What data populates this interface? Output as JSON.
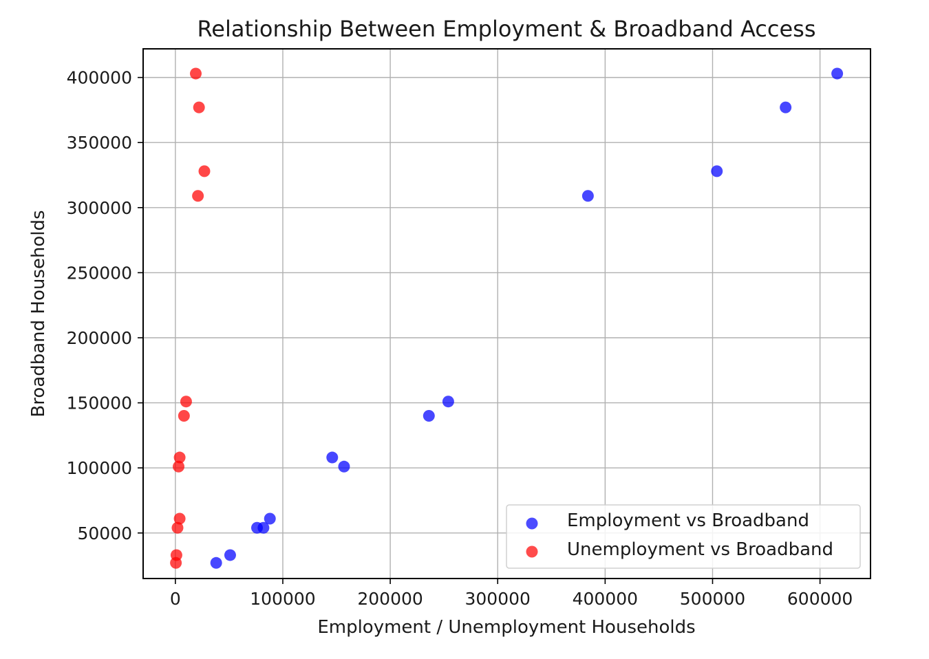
{
  "chart_data": {
    "type": "scatter",
    "title": "Relationship Between Employment & Broadband Access",
    "xlabel": "Employment / Unemployment Households",
    "ylabel": "Broadband Households",
    "xlim": [
      -30000,
      647000
    ],
    "ylim": [
      15000,
      422000
    ],
    "xticks": [
      0,
      100000,
      200000,
      300000,
      400000,
      500000,
      600000
    ],
    "yticks": [
      50000,
      100000,
      150000,
      200000,
      250000,
      300000,
      350000,
      400000
    ],
    "grid": true,
    "legend_position": "lower-right",
    "series": [
      {
        "name": "Employment vs Broadband",
        "color": "#0000ff",
        "points": [
          {
            "x": 616000,
            "y": 403000
          },
          {
            "x": 568000,
            "y": 377000
          },
          {
            "x": 504000,
            "y": 328000
          },
          {
            "x": 384000,
            "y": 309000
          },
          {
            "x": 254000,
            "y": 151000
          },
          {
            "x": 236000,
            "y": 140000
          },
          {
            "x": 146000,
            "y": 108000
          },
          {
            "x": 157000,
            "y": 101000
          },
          {
            "x": 88000,
            "y": 61000
          },
          {
            "x": 76000,
            "y": 54000
          },
          {
            "x": 82000,
            "y": 54000
          },
          {
            "x": 51000,
            "y": 33000
          },
          {
            "x": 38000,
            "y": 27000
          }
        ]
      },
      {
        "name": "Unemployment vs Broadband",
        "color": "#ff0000",
        "points": [
          {
            "x": 19000,
            "y": 403000
          },
          {
            "x": 22000,
            "y": 377000
          },
          {
            "x": 27000,
            "y": 328000
          },
          {
            "x": 21000,
            "y": 309000
          },
          {
            "x": 10000,
            "y": 151000
          },
          {
            "x": 8000,
            "y": 140000
          },
          {
            "x": 4000,
            "y": 108000
          },
          {
            "x": 3000,
            "y": 101000
          },
          {
            "x": 4000,
            "y": 61000
          },
          {
            "x": 2000,
            "y": 54000
          },
          {
            "x": 1000,
            "y": 33000
          },
          {
            "x": 500,
            "y": 27000
          }
        ]
      }
    ]
  }
}
